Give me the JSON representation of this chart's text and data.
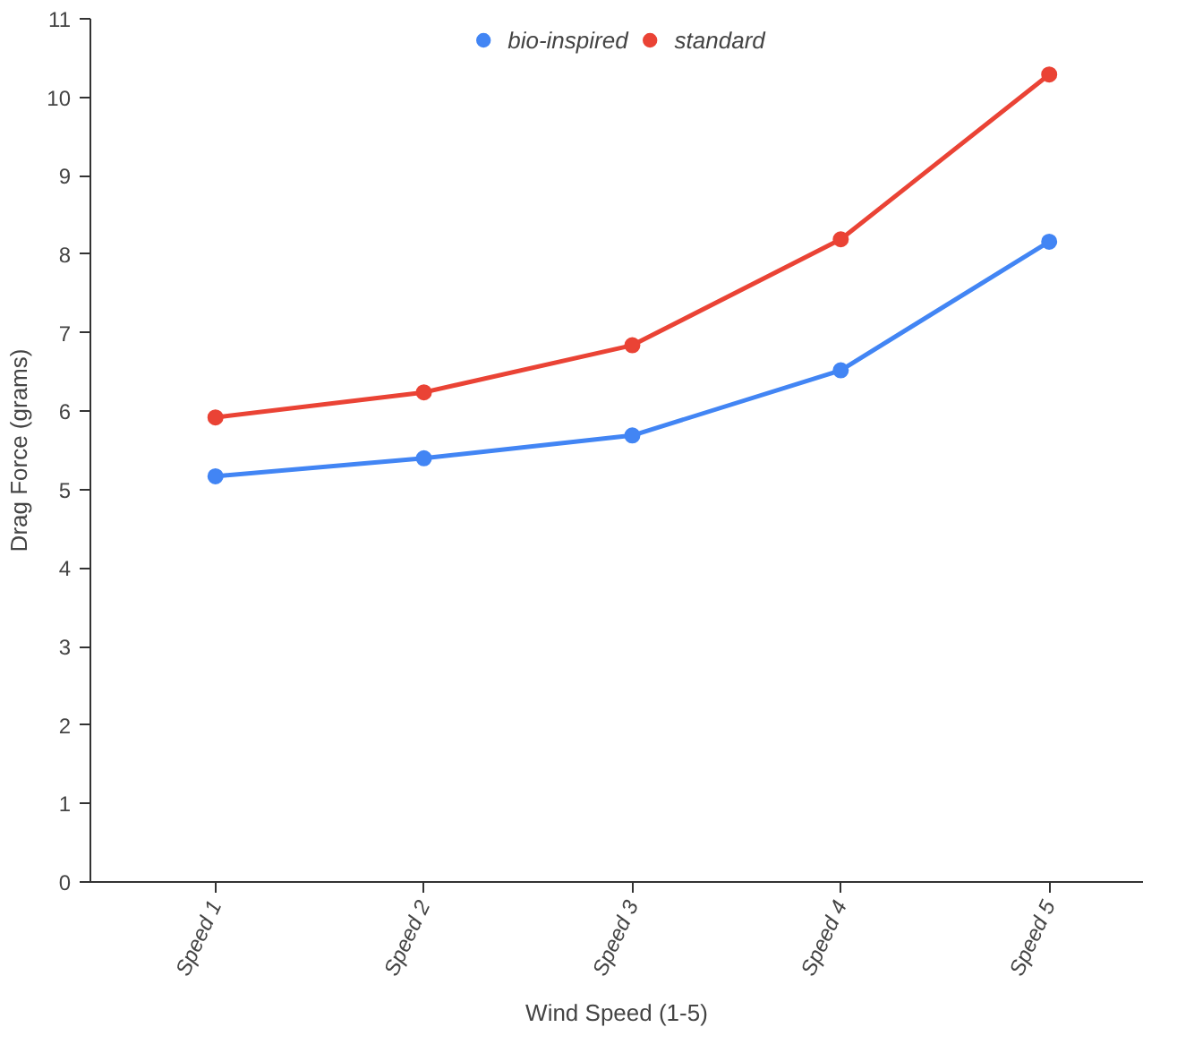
{
  "chart_data": {
    "type": "line",
    "xlabel": "Wind Speed (1-5)",
    "ylabel": "Drag Force (grams)",
    "categories": [
      "Speed 1",
      "Speed 2",
      "Speed 3",
      "Speed 4",
      "Speed 5"
    ],
    "series": [
      {
        "name": "bio-inspired",
        "color": "#4285f4",
        "values": [
          5.17,
          5.4,
          5.69,
          6.52,
          8.16
        ]
      },
      {
        "name": "standard",
        "color": "#ea4335",
        "values": [
          5.92,
          6.24,
          6.84,
          8.19,
          10.29
        ]
      }
    ],
    "ylim": [
      0,
      11
    ],
    "yticks": [
      0,
      1,
      2,
      3,
      4,
      5,
      6,
      7,
      8,
      9,
      10,
      11
    ],
    "grid": false,
    "legend": "top",
    "marker": "circle",
    "line_style": "solid"
  }
}
